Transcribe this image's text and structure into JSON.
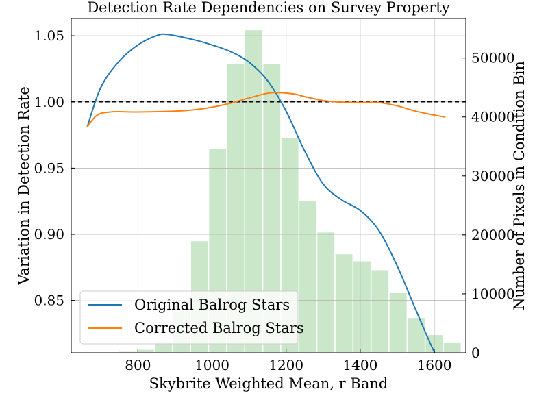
{
  "chart_data": {
    "type": "line",
    "title": "Detection Rate Dependencies on Survey Property",
    "xlabel": "Skybrite Weighted Mean, r Band",
    "ylabel": "Variation in Detection Rate",
    "y2label": "Number of Pixels in Condition Bin",
    "xlim": [
      620,
      1685
    ],
    "ylim": [
      0.8105,
      1.063
    ],
    "y2lim": [
      0,
      56700
    ],
    "x_ticks": [
      800,
      1000,
      1200,
      1400,
      1600
    ],
    "x_tick_labels": [
      "800",
      "1000",
      "1200",
      "1400",
      "1600"
    ],
    "y_ticks": [
      0.85,
      0.9,
      0.95,
      1.0,
      1.05
    ],
    "y_tick_labels": [
      "0.85",
      "0.90",
      "0.95",
      "1.00",
      "1.05"
    ],
    "y2_ticks": [
      0,
      10000,
      20000,
      30000,
      40000,
      50000
    ],
    "y2_tick_labels": [
      "0",
      "10000",
      "20000",
      "30000",
      "40000",
      "50000"
    ],
    "grid": true,
    "reference_line": {
      "y": 1.0,
      "style": "dashed",
      "color": "#000000"
    },
    "legend": {
      "position": "bottom-left",
      "entries": [
        "Original Balrog Stars",
        "Corrected Balrog Stars"
      ]
    },
    "series": [
      {
        "name": "Original Balrog Stars",
        "color": "#1f77b4",
        "x": [
          663,
          700,
          750,
          800,
          850,
          880,
          950,
          1000,
          1050,
          1100,
          1150,
          1200,
          1250,
          1300,
          1350,
          1400,
          1450,
          1500,
          1550,
          1600,
          1630
        ],
        "y": [
          0.981,
          1.011,
          1.031,
          1.043,
          1.05,
          1.051,
          1.047,
          1.043,
          1.038,
          1.03,
          1.016,
          0.993,
          0.963,
          0.938,
          0.926,
          0.918,
          0.903,
          0.876,
          0.843,
          0.811,
          0.797
        ]
      },
      {
        "name": "Corrected Balrog Stars",
        "color": "#ff7f0e",
        "x": [
          663,
          690,
          730,
          800,
          900,
          950,
          1000,
          1050,
          1100,
          1150,
          1180,
          1220,
          1250,
          1300,
          1350,
          1400,
          1450,
          1500,
          1550,
          1600,
          1630
        ],
        "y": [
          0.981,
          0.99,
          0.9925,
          0.9924,
          0.993,
          0.994,
          0.996,
          0.999,
          1.003,
          1.0065,
          1.007,
          1.006,
          1.004,
          1.001,
          0.9998,
          0.9995,
          0.9995,
          0.997,
          0.993,
          0.99,
          0.9885
        ]
      }
    ],
    "histogram": {
      "name": "Number of Pixels in Condition Bin",
      "axis": "right",
      "color": "#2ca02c",
      "alpha": 0.25,
      "bin_width": 48.7,
      "bin_starts": [
        650,
        698.7,
        747.4,
        796.1,
        844.8,
        893.5,
        942.2,
        990.9,
        1039.6,
        1088.3,
        1137,
        1185.7,
        1234.4,
        1283.1,
        1331.8,
        1380.5,
        1429.2,
        1477.9,
        1526.6,
        1575.3,
        1624
      ],
      "counts": [
        0,
        100,
        250,
        600,
        1900,
        7000,
        19000,
        34700,
        49000,
        54800,
        49000,
        36500,
        25800,
        20500,
        16800,
        15600,
        14100,
        10200,
        6000,
        3100,
        1800
      ]
    }
  }
}
